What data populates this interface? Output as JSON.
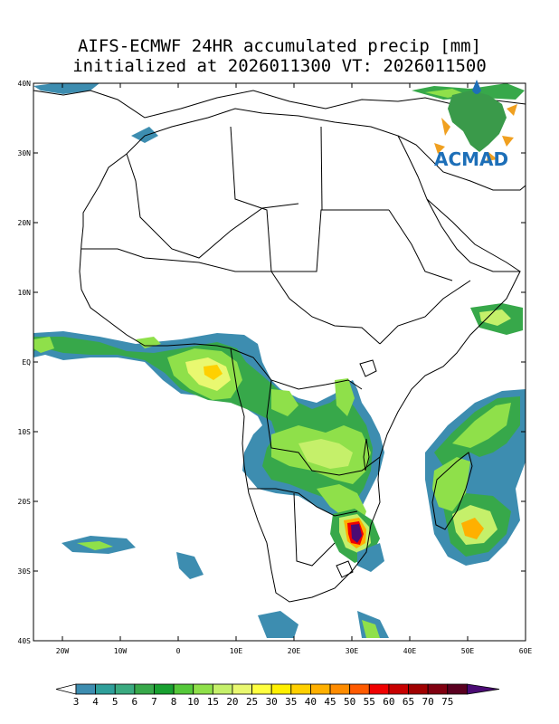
{
  "title": {
    "line1": "AIFS-ECMWF 24HR accumulated precip [mm]",
    "line2": "initialized at 2026011300 VT: 2026011500"
  },
  "logo": {
    "text": "ACMAD"
  },
  "map": {
    "lon_range": [
      -25,
      60
    ],
    "lat_range": [
      -40,
      40
    ],
    "lon_ticks": [
      {
        "value": -20,
        "label": "20W"
      },
      {
        "value": -10,
        "label": "10W"
      },
      {
        "value": 0,
        "label": "0"
      },
      {
        "value": 10,
        "label": "10E"
      },
      {
        "value": 20,
        "label": "20E"
      },
      {
        "value": 30,
        "label": "30E"
      },
      {
        "value": 40,
        "label": "40E"
      },
      {
        "value": 50,
        "label": "50E"
      },
      {
        "value": 60,
        "label": "60E"
      }
    ],
    "lat_ticks": [
      {
        "value": 40,
        "label": "40N"
      },
      {
        "value": 30,
        "label": "30N"
      },
      {
        "value": 20,
        "label": "20N"
      },
      {
        "value": 10,
        "label": "10N"
      },
      {
        "value": 0,
        "label": "EQ"
      },
      {
        "value": -10,
        "label": "10S"
      },
      {
        "value": -20,
        "label": "20S"
      },
      {
        "value": -30,
        "label": "30S"
      },
      {
        "value": -40,
        "label": "40S"
      }
    ]
  },
  "colorbar": {
    "levels": [
      "3",
      "4",
      "5",
      "6",
      "7",
      "8",
      "10",
      "15",
      "20",
      "25",
      "30",
      "35",
      "40",
      "45",
      "50",
      "55",
      "60",
      "65",
      "70",
      "75"
    ],
    "low_color": "#ffffff",
    "high_color": "#4b0b74",
    "colors": [
      "#3d8db0",
      "#2f9f9a",
      "#3aaa80",
      "#37a84a",
      "#18a030",
      "#55c83a",
      "#8fe04a",
      "#c5f06a",
      "#e9f870",
      "#ffff40",
      "#fff000",
      "#ffd000",
      "#ffb000",
      "#ff8c00",
      "#ff5a00",
      "#f00000",
      "#c80000",
      "#a00000",
      "#800010",
      "#5a0020",
      "#4b0b74"
    ]
  },
  "precip_colors": {
    "light": "#3d8db0",
    "teal": "#2f9f9a",
    "green": "#37a84a",
    "lightgreen": "#8fe04a",
    "yellowgreen": "#c5f06a",
    "yellow": "#fff000",
    "orange": "#ffb000",
    "red": "#f00000",
    "darkred": "#800010",
    "purple": "#4b0b74"
  }
}
